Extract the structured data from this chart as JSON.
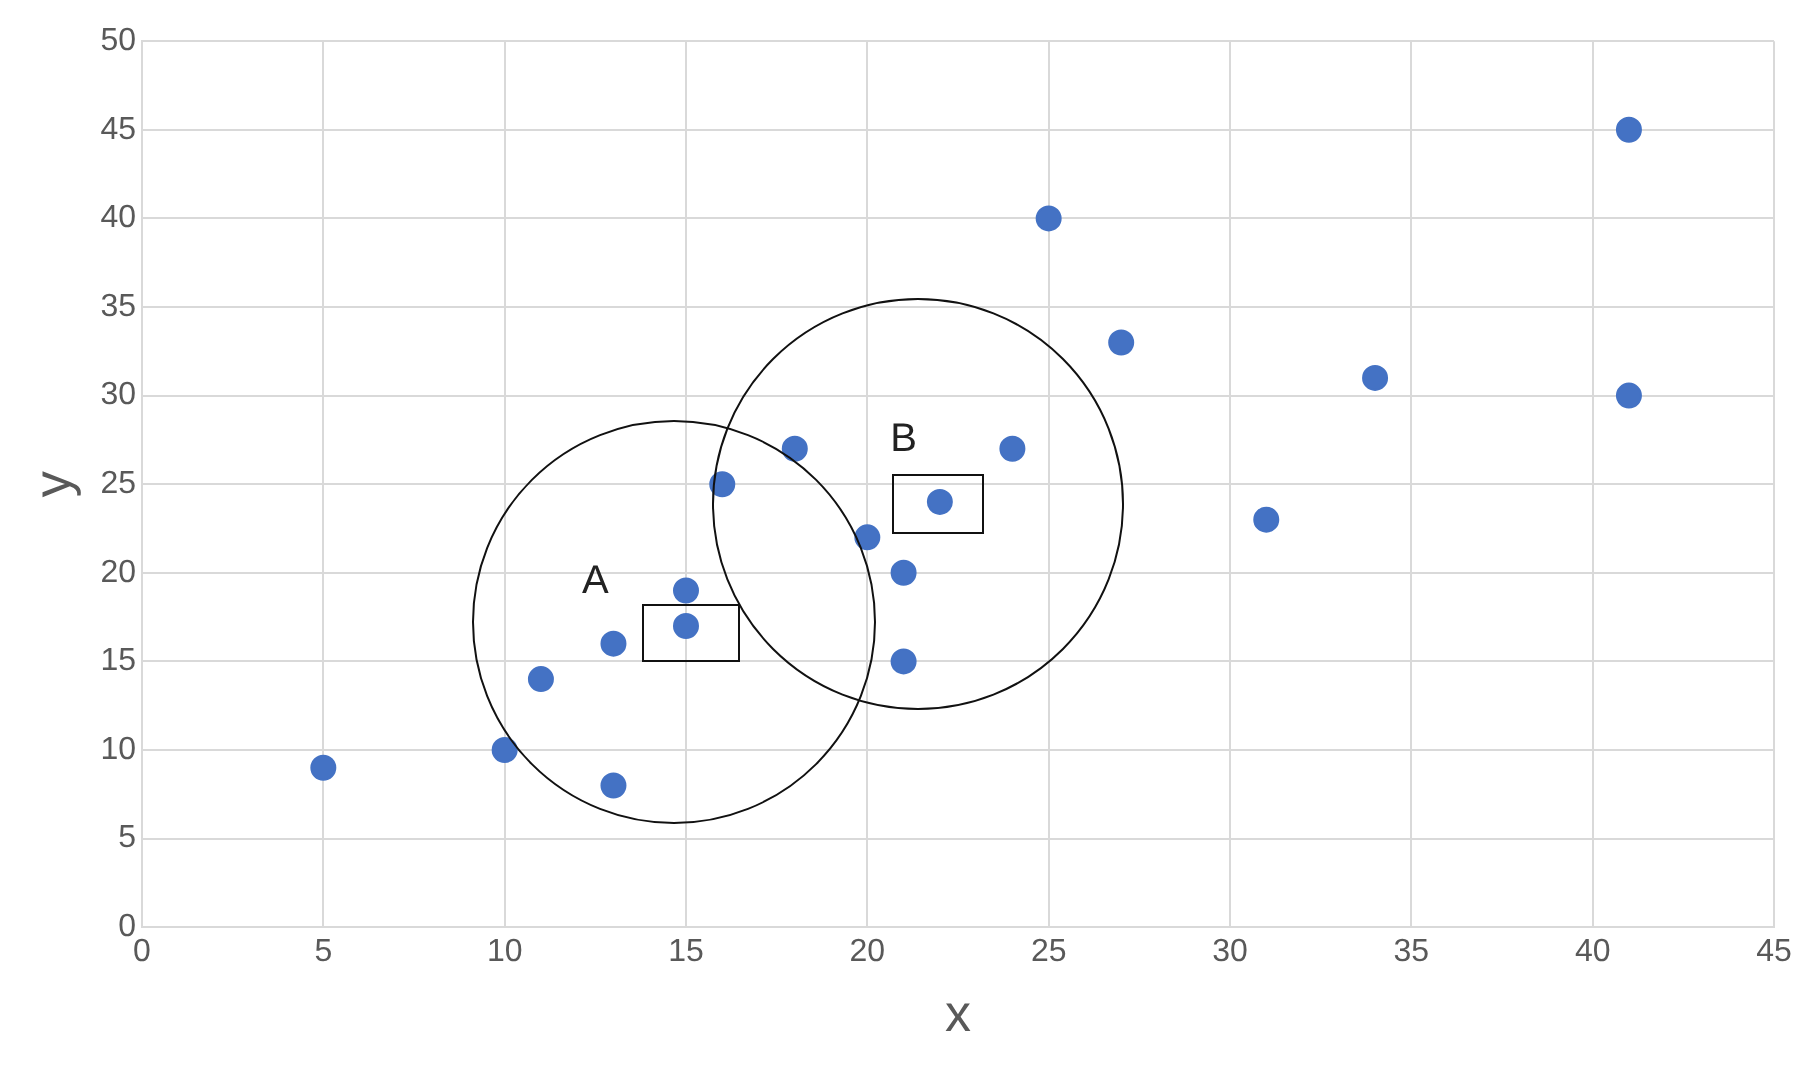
{
  "chart_data": {
    "type": "scatter",
    "xlabel": "x",
    "ylabel": "y",
    "x": [
      5,
      10,
      11,
      13,
      13,
      15,
      15,
      16,
      18,
      20,
      21,
      21,
      22,
      24,
      25,
      27,
      31,
      34,
      41,
      41
    ],
    "values": [
      9,
      10,
      14,
      16,
      8,
      19,
      17,
      25,
      27,
      22,
      20,
      15,
      24,
      27,
      40,
      33,
      23,
      31,
      45,
      30
    ],
    "color": "#4472c4",
    "marker": "circle",
    "xlim": [
      0,
      45
    ],
    "xticks": [
      0,
      5,
      10,
      15,
      20,
      25,
      30,
      35,
      40,
      45
    ],
    "ylim": [
      0,
      50
    ],
    "yticks": [
      0,
      5,
      10,
      15,
      20,
      25,
      30,
      35,
      40,
      45,
      50
    ],
    "grid": true,
    "legend": false,
    "annotations": [
      "A",
      "B"
    ]
  }
}
